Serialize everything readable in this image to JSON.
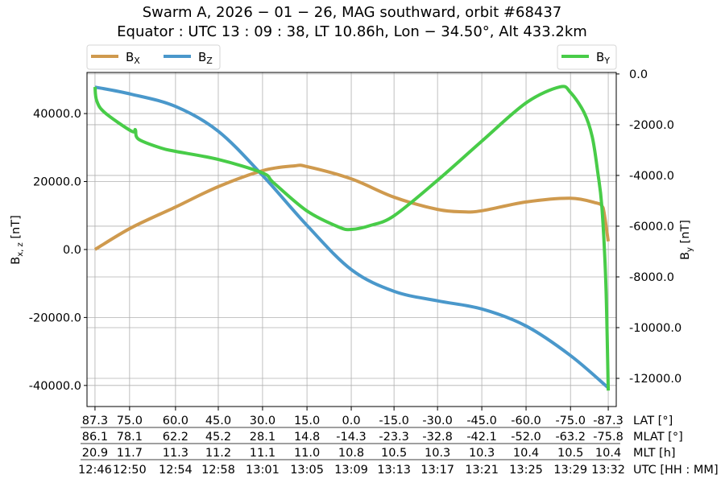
{
  "chart_data": {
    "type": "line",
    "title": [
      "Swarm A,  2026 − 01 − 26,  MAG southward,  orbit #68437",
      "Equator :  UTC 13 : 09 : 38,  LT 10.86h,  Lon  − 34.50°,  Alt 433.2km"
    ],
    "grid": true,
    "x_axis": {
      "unit": "UTC time",
      "range": [
        "12:45:17",
        "13:32:43"
      ],
      "tick_positions": [
        "12:46:00",
        "12:49:06",
        "12:53:13",
        "12:57:03",
        "13:01:01",
        "13:05:00",
        "13:08:58",
        "13:12:48",
        "13:16:42",
        "13:20:40",
        "13:24:38",
        "13:28:37",
        "13:32:00"
      ],
      "rows": [
        {
          "label": "LAT [°]",
          "ticks": [
            "87.3",
            "75.0",
            "60.0",
            "45.0",
            "30.0",
            "15.0",
            "0.0",
            "-15.0",
            "-30.0",
            "-45.0",
            "-60.0",
            "-75.0",
            "-87.3"
          ]
        },
        {
          "label": "MLAT [°]",
          "ticks": [
            "86.1",
            "78.1",
            "62.2",
            "45.2",
            "28.1",
            "14.8",
            "-14.3",
            "-23.3",
            "-32.8",
            "-42.1",
            "-52.0",
            "-63.2",
            "-75.8"
          ]
        },
        {
          "label": "MLT [h]",
          "ticks": [
            "20.9",
            "11.7",
            "11.3",
            "11.2",
            "11.1",
            "11.0",
            "10.8",
            "10.5",
            "10.3",
            "10.3",
            "10.4",
            "10.5",
            "10.4"
          ]
        },
        {
          "label": "UTC [HH : MM]",
          "ticks": [
            "12:46",
            "12:50",
            "12:54",
            "12:58",
            "13:01",
            "13:05",
            "13:09",
            "13:13",
            "13:17",
            "13:21",
            "13:25",
            "13:29",
            "13:32"
          ]
        }
      ]
    },
    "y_left": {
      "label": "B",
      "label_sub": "x, z",
      "label_unit": " [nT]",
      "range": [
        -46200,
        52100
      ],
      "ticks": [
        40000,
        20000,
        0,
        -20000,
        -40000
      ],
      "tick_labels": [
        "40000.0",
        "20000.0",
        "0.0",
        "-20000.0",
        "-40000.0"
      ]
    },
    "y_right": {
      "label": "B",
      "label_sub": "y",
      "label_unit": " [nT]",
      "range": [
        -13110,
        60
      ],
      "ticks": [
        0,
        -2000,
        -4000,
        -6000,
        -8000,
        -10000,
        -12000
      ],
      "tick_labels": [
        "0.0",
        "-2000.0",
        "-4000.0",
        "-6000.0",
        "-8000.0",
        "-10000.0",
        "-12000.0"
      ]
    },
    "legend": [
      {
        "placement": "top-left",
        "entries": [
          "Bx",
          "Bz"
        ]
      },
      {
        "placement": "top-right",
        "entries": [
          "By"
        ]
      }
    ],
    "series": [
      {
        "name": "Bx",
        "label_main": "B",
        "label_sub": "X",
        "axis": "left",
        "color": "#cf9a4e",
        "x": [
          "12:46:00",
          "12:49:15",
          "12:53:13",
          "12:57:03",
          "13:01:01",
          "13:03:50",
          "13:05:00",
          "13:08:58",
          "13:12:48",
          "13:16:42",
          "13:19:00",
          "13:20:40",
          "13:24:38",
          "13:28:37",
          "13:30:55",
          "13:31:26",
          "13:31:38",
          "13:32:00"
        ],
        "values": [
          0,
          6400,
          12500,
          18500,
          23200,
          24600,
          24400,
          20800,
          15400,
          11800,
          11100,
          11400,
          14000,
          15100,
          13700,
          12800,
          10700,
          2400
        ]
      },
      {
        "name": "Bz",
        "label_main": "B",
        "label_sub": "Z",
        "axis": "left",
        "color": "#4a98cb",
        "x": [
          "12:46:00",
          "12:49:15",
          "12:53:13",
          "12:57:03",
          "13:01:01",
          "13:05:00",
          "13:08:58",
          "13:12:48",
          "13:16:42",
          "13:20:40",
          "13:24:38",
          "13:28:37",
          "13:32:00"
        ],
        "values": [
          47800,
          45700,
          42100,
          34800,
          21800,
          7100,
          -5900,
          -12300,
          -15100,
          -17500,
          -22500,
          -31200,
          -40700
        ]
      },
      {
        "name": "By",
        "label_main": "B",
        "label_sub": "Y",
        "axis": "right",
        "color": "#48cc48",
        "x": [
          "12:46:00",
          "12:46:09",
          "12:46:52",
          "12:49:15",
          "12:49:37",
          "12:49:54",
          "12:51:55",
          "12:53:13",
          "12:57:03",
          "13:01:01",
          "13:02:02",
          "13:05:00",
          "13:07:49",
          "13:08:58",
          "13:10:42",
          "13:12:48",
          "13:16:42",
          "13:20:40",
          "13:24:38",
          "13:27:40",
          "13:28:37",
          "13:29:50",
          "13:30:34",
          "13:31:04",
          "13:31:26",
          "13:31:47",
          "13:32:00"
        ],
        "values": [
          -510,
          -1050,
          -1520,
          -2250,
          -2200,
          -2570,
          -2920,
          -3050,
          -3370,
          -3900,
          -4300,
          -5400,
          -6030,
          -6130,
          -5970,
          -5590,
          -4190,
          -2650,
          -1140,
          -510,
          -730,
          -1520,
          -2480,
          -3900,
          -5270,
          -8250,
          -12480
        ]
      }
    ]
  }
}
